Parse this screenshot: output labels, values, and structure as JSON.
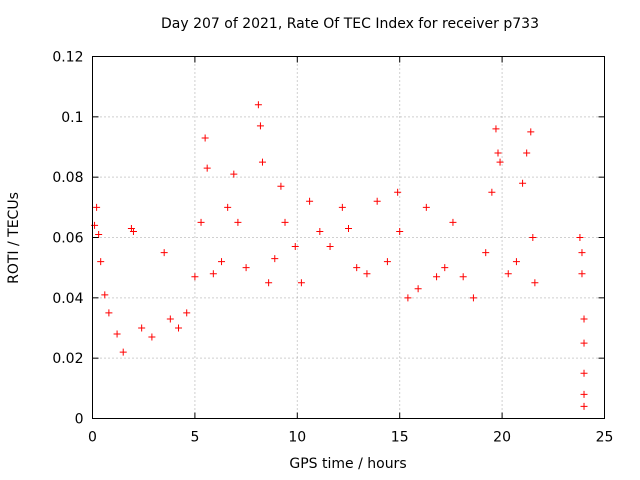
{
  "chart_data": {
    "type": "scatter",
    "title": "Day 207 of 2021, Rate Of TEC Index for receiver p733",
    "xlabel": "GPS time / hours",
    "ylabel": "ROTI / TECUs",
    "xlim": [
      0,
      25
    ],
    "ylim": [
      0,
      0.12
    ],
    "xticks": [
      "0",
      "5",
      "10",
      "15",
      "20",
      "25"
    ],
    "yticks": [
      "0",
      "0.02",
      "0.04",
      "0.06",
      "0.08",
      "0.1",
      "0.12"
    ],
    "grid": true,
    "marker": "+",
    "color": "#ff0000",
    "series": [
      {
        "points": [
          [
            0.1,
            0.064
          ],
          [
            0.2,
            0.07
          ],
          [
            0.3,
            0.061
          ],
          [
            0.4,
            0.052
          ],
          [
            0.6,
            0.041
          ],
          [
            0.8,
            0.035
          ],
          [
            1.2,
            0.028
          ],
          [
            1.5,
            0.022
          ],
          [
            1.9,
            0.063
          ],
          [
            2.0,
            0.062
          ],
          [
            2.4,
            0.03
          ],
          [
            2.9,
            0.027
          ],
          [
            3.5,
            0.055
          ],
          [
            3.8,
            0.033
          ],
          [
            4.2,
            0.03
          ],
          [
            4.6,
            0.035
          ],
          [
            5.0,
            0.047
          ],
          [
            5.3,
            0.065
          ],
          [
            5.5,
            0.093
          ],
          [
            5.6,
            0.083
          ],
          [
            5.9,
            0.048
          ],
          [
            6.3,
            0.052
          ],
          [
            6.6,
            0.07
          ],
          [
            6.9,
            0.081
          ],
          [
            7.1,
            0.065
          ],
          [
            7.5,
            0.05
          ],
          [
            8.1,
            0.104
          ],
          [
            8.2,
            0.097
          ],
          [
            8.3,
            0.085
          ],
          [
            8.6,
            0.045
          ],
          [
            8.9,
            0.053
          ],
          [
            9.2,
            0.077
          ],
          [
            9.4,
            0.065
          ],
          [
            9.9,
            0.057
          ],
          [
            10.2,
            0.045
          ],
          [
            10.6,
            0.072
          ],
          [
            11.1,
            0.062
          ],
          [
            11.6,
            0.057
          ],
          [
            12.2,
            0.07
          ],
          [
            12.5,
            0.063
          ],
          [
            12.9,
            0.05
          ],
          [
            13.4,
            0.048
          ],
          [
            13.9,
            0.072
          ],
          [
            14.4,
            0.052
          ],
          [
            14.9,
            0.075
          ],
          [
            15.0,
            0.062
          ],
          [
            15.4,
            0.04
          ],
          [
            15.9,
            0.043
          ],
          [
            16.3,
            0.07
          ],
          [
            16.8,
            0.047
          ],
          [
            17.2,
            0.05
          ],
          [
            17.6,
            0.065
          ],
          [
            18.1,
            0.047
          ],
          [
            18.6,
            0.04
          ],
          [
            19.2,
            0.055
          ],
          [
            19.5,
            0.075
          ],
          [
            19.7,
            0.096
          ],
          [
            19.8,
            0.088
          ],
          [
            19.9,
            0.085
          ],
          [
            20.3,
            0.048
          ],
          [
            20.7,
            0.052
          ],
          [
            21.0,
            0.078
          ],
          [
            21.2,
            0.088
          ],
          [
            21.4,
            0.095
          ],
          [
            21.5,
            0.06
          ],
          [
            21.6,
            0.045
          ],
          [
            23.8,
            0.06
          ],
          [
            23.9,
            0.055
          ],
          [
            23.9,
            0.048
          ],
          [
            24.0,
            0.033
          ],
          [
            24.0,
            0.025
          ],
          [
            24.0,
            0.015
          ],
          [
            24.0,
            0.008
          ],
          [
            24.0,
            0.004
          ]
        ]
      }
    ]
  }
}
